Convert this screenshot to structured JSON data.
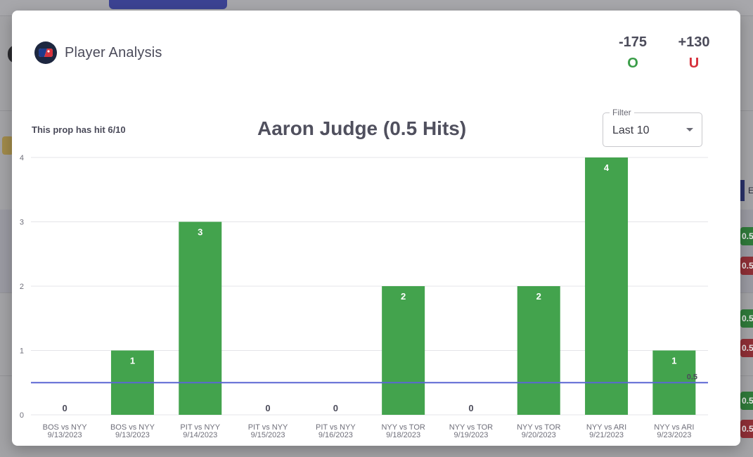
{
  "modal": {
    "title": "Player Analysis",
    "logo_icon": "mlb-logo-icon"
  },
  "odds": {
    "over_price": "-175",
    "over_side": "O",
    "under_price": "+130",
    "under_side": "U",
    "over_color": "#3a9d48",
    "under_color": "#d6303b"
  },
  "prop_note": "This prop has hit 6/10",
  "filter": {
    "legend": "Filter",
    "value": "Last 10"
  },
  "background": {
    "pill_text": "0.5"
  },
  "chart_data": {
    "type": "bar",
    "title": "Aaron Judge (0.5 Hits)",
    "categories": [
      [
        "BOS vs NYY",
        "9/13/2023"
      ],
      [
        "BOS vs NYY",
        "9/13/2023"
      ],
      [
        "PIT vs NYY",
        "9/14/2023"
      ],
      [
        "PIT vs NYY",
        "9/15/2023"
      ],
      [
        "PIT vs NYY",
        "9/16/2023"
      ],
      [
        "NYY vs TOR",
        "9/18/2023"
      ],
      [
        "NYY vs TOR",
        "9/19/2023"
      ],
      [
        "NYY vs TOR",
        "9/20/2023"
      ],
      [
        "NYY vs ARI",
        "9/21/2023"
      ],
      [
        "NYY vs ARI",
        "9/23/2023"
      ]
    ],
    "values": [
      0,
      1,
      3,
      0,
      0,
      2,
      0,
      2,
      4,
      1
    ],
    "ylim": [
      0,
      4
    ],
    "yticks": [
      0,
      1,
      2,
      3,
      4
    ],
    "line": {
      "value": 0.5,
      "label": "0.5",
      "color": "#5b67d4"
    },
    "bar_color": "#43a34d",
    "grid": true,
    "legend": "none"
  }
}
